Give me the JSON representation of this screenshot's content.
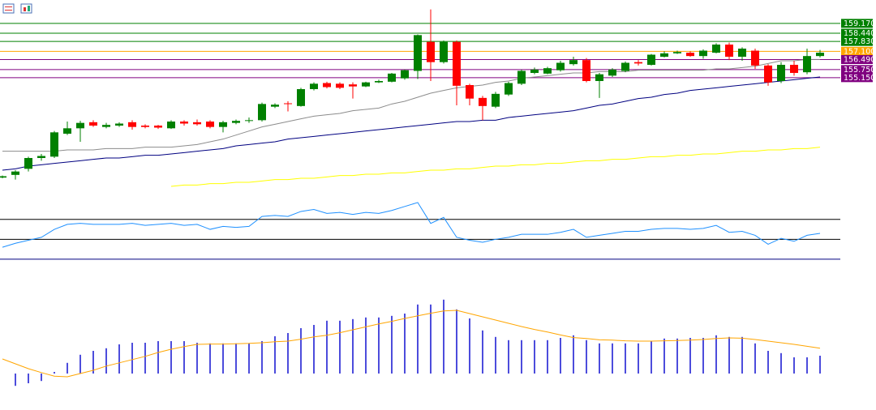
{
  "chart_data": [
    {
      "type": "candlestick",
      "ylim": [
        145.3,
        160.9
      ],
      "up_color": "#008000",
      "down_color": "#ff0000",
      "open": [
        147.75,
        147.95,
        148.4,
        149.2,
        149.3,
        151.0,
        151.4,
        151.85,
        151.5,
        151.6,
        151.85,
        151.6,
        151.6,
        151.4,
        151.9,
        151.85,
        151.9,
        151.5,
        151.8,
        151.95,
        152.0,
        153.0,
        153.25,
        153.05,
        154.3,
        154.75,
        154.7,
        154.65,
        154.5,
        154.8,
        154.85,
        155.1,
        155.65,
        157.8,
        156.3,
        157.8,
        154.6,
        153.65,
        153.0,
        153.9,
        154.7,
        155.5,
        155.45,
        155.7,
        156.15,
        156.45,
        154.9,
        155.3,
        155.65,
        156.3,
        156.1,
        156.7,
        156.95,
        157.0,
        156.75,
        157.0,
        157.6,
        156.7,
        157.15,
        156.05,
        154.9,
        156.1,
        155.55,
        156.75
      ],
      "high": [
        147.9,
        148.3,
        149.3,
        149.5,
        151.2,
        151.9,
        151.95,
        152.0,
        151.8,
        151.85,
        152.0,
        151.7,
        151.65,
        152.0,
        152.0,
        152.05,
        152.0,
        151.95,
        152.05,
        152.2,
        153.3,
        153.25,
        153.4,
        154.4,
        154.8,
        154.85,
        154.8,
        154.8,
        154.85,
        155.0,
        155.5,
        155.75,
        158.35,
        160.2,
        157.9,
        157.9,
        154.7,
        153.8,
        154.1,
        154.85,
        155.75,
        155.9,
        155.95,
        156.4,
        156.7,
        156.6,
        155.5,
        155.85,
        156.35,
        156.45,
        156.9,
        157.1,
        157.15,
        157.1,
        157.25,
        157.7,
        157.75,
        157.4,
        157.3,
        156.15,
        156.3,
        156.4,
        157.3,
        157.2
      ],
      "low": [
        147.7,
        147.6,
        148.2,
        149.0,
        149.2,
        150.9,
        150.4,
        151.5,
        151.4,
        151.5,
        151.3,
        151.4,
        151.35,
        151.35,
        151.6,
        151.6,
        151.4,
        151.1,
        151.7,
        151.8,
        151.9,
        152.9,
        152.65,
        153.0,
        154.2,
        154.35,
        154.3,
        153.6,
        154.45,
        154.75,
        154.8,
        155.0,
        155.05,
        154.9,
        156.2,
        153.1,
        153.1,
        152.0,
        152.9,
        153.8,
        154.6,
        155.4,
        155.4,
        155.6,
        156.05,
        154.8,
        153.65,
        155.2,
        155.55,
        156.05,
        156.05,
        156.65,
        156.9,
        156.7,
        156.55,
        156.95,
        156.45,
        156.4,
        155.8,
        154.55,
        154.75,
        155.3,
        155.4,
        156.65
      ],
      "close": [
        147.85,
        148.2,
        149.2,
        149.35,
        151.1,
        151.4,
        151.8,
        151.6,
        151.65,
        151.75,
        151.5,
        151.5,
        151.45,
        151.9,
        151.75,
        151.7,
        151.5,
        151.85,
        151.95,
        152.0,
        153.2,
        153.15,
        153.2,
        154.3,
        154.7,
        154.45,
        154.4,
        154.5,
        154.8,
        154.9,
        155.45,
        155.7,
        158.3,
        156.3,
        157.8,
        154.55,
        153.6,
        153.05,
        153.95,
        154.75,
        155.65,
        155.75,
        155.85,
        156.25,
        156.45,
        154.9,
        155.4,
        155.75,
        156.25,
        156.2,
        156.85,
        156.95,
        157.05,
        156.75,
        157.15,
        157.6,
        156.7,
        157.3,
        156.05,
        154.8,
        156.1,
        155.5,
        156.75,
        157.0
      ],
      "series": [
        {
          "color": "#8c8c8c",
          "values": [
            149.7,
            149.7,
            149.7,
            149.7,
            149.7,
            149.8,
            149.8,
            149.8,
            149.9,
            149.9,
            149.9,
            150.0,
            150.0,
            150.0,
            150.1,
            150.2,
            150.4,
            150.6,
            150.9,
            151.2,
            151.5,
            151.7,
            151.9,
            152.1,
            152.3,
            152.4,
            152.5,
            152.7,
            152.8,
            152.9,
            153.2,
            153.4,
            153.7,
            154.0,
            154.2,
            154.4,
            154.5,
            154.6,
            154.8,
            154.9,
            155.1,
            155.2,
            155.3,
            155.4,
            155.5,
            155.5,
            155.6,
            155.6,
            155.6,
            155.7,
            155.7,
            155.7,
            155.7,
            155.7,
            155.7,
            155.8,
            155.8,
            155.9,
            156.0,
            156.2,
            156.4,
            156.4,
            156.5,
            156.5
          ]
        },
        {
          "color": "#000080",
          "values": [
            148.3,
            148.4,
            148.6,
            148.7,
            148.8,
            148.9,
            149.0,
            149.1,
            149.2,
            149.2,
            149.3,
            149.4,
            149.4,
            149.5,
            149.6,
            149.7,
            149.8,
            149.9,
            150.1,
            150.2,
            150.3,
            150.4,
            150.6,
            150.7,
            150.8,
            150.9,
            151.0,
            151.1,
            151.2,
            151.3,
            151.4,
            151.5,
            151.6,
            151.7,
            151.8,
            151.9,
            151.9,
            152.0,
            152.0,
            152.2,
            152.3,
            152.4,
            152.5,
            152.6,
            152.7,
            152.9,
            153.1,
            153.2,
            153.4,
            153.6,
            153.7,
            153.9,
            154.0,
            154.2,
            154.3,
            154.4,
            154.5,
            154.6,
            154.7,
            154.8,
            154.9,
            155.0,
            155.1,
            155.2
          ]
        },
        {
          "color": "#ffff00",
          "values": [
            null,
            null,
            null,
            null,
            null,
            null,
            null,
            null,
            null,
            null,
            null,
            null,
            null,
            147.1,
            147.2,
            147.2,
            147.3,
            147.3,
            147.4,
            147.4,
            147.5,
            147.6,
            147.6,
            147.7,
            147.7,
            147.8,
            147.9,
            147.9,
            148.0,
            148.0,
            148.1,
            148.1,
            148.2,
            148.3,
            148.3,
            148.4,
            148.4,
            148.5,
            148.6,
            148.6,
            148.7,
            148.7,
            148.8,
            148.8,
            148.9,
            149.0,
            149.0,
            149.1,
            149.1,
            149.2,
            149.3,
            149.3,
            149.4,
            149.4,
            149.5,
            149.5,
            149.6,
            149.7,
            149.7,
            149.8,
            149.8,
            149.9,
            149.9,
            150.0
          ]
        }
      ],
      "yticks": [
        {
          "value": 159.17,
          "label": "159.170"
        },
        {
          "value": 158.44,
          "label": "158.440"
        },
        {
          "value": 157.83,
          "label": "157.830"
        },
        {
          "value": 157.1,
          "label": "157.100"
        },
        {
          "value": 156.49,
          "label": "156.490"
        },
        {
          "value": 155.75,
          "label": "155.750"
        },
        {
          "value": 155.15,
          "label": "155.150"
        }
      ],
      "ytick_colors": [
        "#008000",
        "#008000",
        "#008000",
        "#ffa500",
        "#800080",
        "#800080",
        "#800080"
      ]
    },
    {
      "type": "line",
      "ylim": [
        25,
        91
      ],
      "color": "#1e90ff",
      "values": [
        42,
        46,
        49,
        52,
        60,
        65,
        66,
        65,
        65,
        65,
        66,
        64,
        65,
        66,
        64,
        65,
        60,
        63,
        62,
        63,
        73,
        74,
        73,
        78,
        80,
        76,
        77,
        75,
        77,
        76,
        79,
        83,
        87,
        66,
        72,
        52,
        49,
        47,
        50,
        52,
        55,
        55,
        55,
        57,
        60,
        52,
        54,
        56,
        58,
        58,
        60,
        61,
        61,
        60,
        61,
        64,
        57,
        58,
        54,
        45,
        51,
        48,
        54,
        56
      ],
      "levels": [
        30,
        50,
        70
      ],
      "level_colors": [
        "#000080",
        "#000000",
        "#000000"
      ]
    },
    {
      "type": "bar",
      "ylim": [
        -1,
        3
      ],
      "color": "#0000cd",
      "values": [
        null,
        -0.38,
        -0.3,
        -0.23,
        0.05,
        0.33,
        0.58,
        0.7,
        0.78,
        0.9,
        0.95,
        0.95,
        1.0,
        1.0,
        1.0,
        0.95,
        0.93,
        0.93,
        0.93,
        0.93,
        1.0,
        1.15,
        1.25,
        1.4,
        1.5,
        1.63,
        1.63,
        1.68,
        1.73,
        1.73,
        1.78,
        1.85,
        2.13,
        2.13,
        2.28,
        1.98,
        1.7,
        1.33,
        1.13,
        1.03,
        1.03,
        1.03,
        1.03,
        1.1,
        1.18,
        1.03,
        0.93,
        0.93,
        0.93,
        0.93,
        1.0,
        1.08,
        1.08,
        1.1,
        1.1,
        1.18,
        1.13,
        1.13,
        0.93,
        0.7,
        0.63,
        0.5,
        0.5,
        0.55
      ],
      "series": [
        {
          "color": "#ffa500",
          "values": [
            0.45,
            0.3,
            0.15,
            0.03,
            -0.08,
            -0.1,
            0.0,
            0.1,
            0.23,
            0.33,
            0.43,
            0.53,
            0.65,
            0.75,
            0.83,
            0.9,
            0.91,
            0.91,
            0.92,
            0.93,
            0.95,
            0.98,
            1.0,
            1.06,
            1.13,
            1.18,
            1.26,
            1.35,
            1.44,
            1.53,
            1.61,
            1.7,
            1.78,
            1.86,
            1.93,
            1.95,
            1.85,
            1.75,
            1.65,
            1.55,
            1.45,
            1.36,
            1.28,
            1.19,
            1.11,
            1.08,
            1.04,
            1.03,
            1.01,
            1.0,
            1.0,
            1.01,
            1.02,
            1.03,
            1.05,
            1.08,
            1.1,
            1.09,
            1.05,
            1.0,
            0.95,
            0.9,
            0.84,
            0.78
          ]
        }
      ]
    }
  ]
}
